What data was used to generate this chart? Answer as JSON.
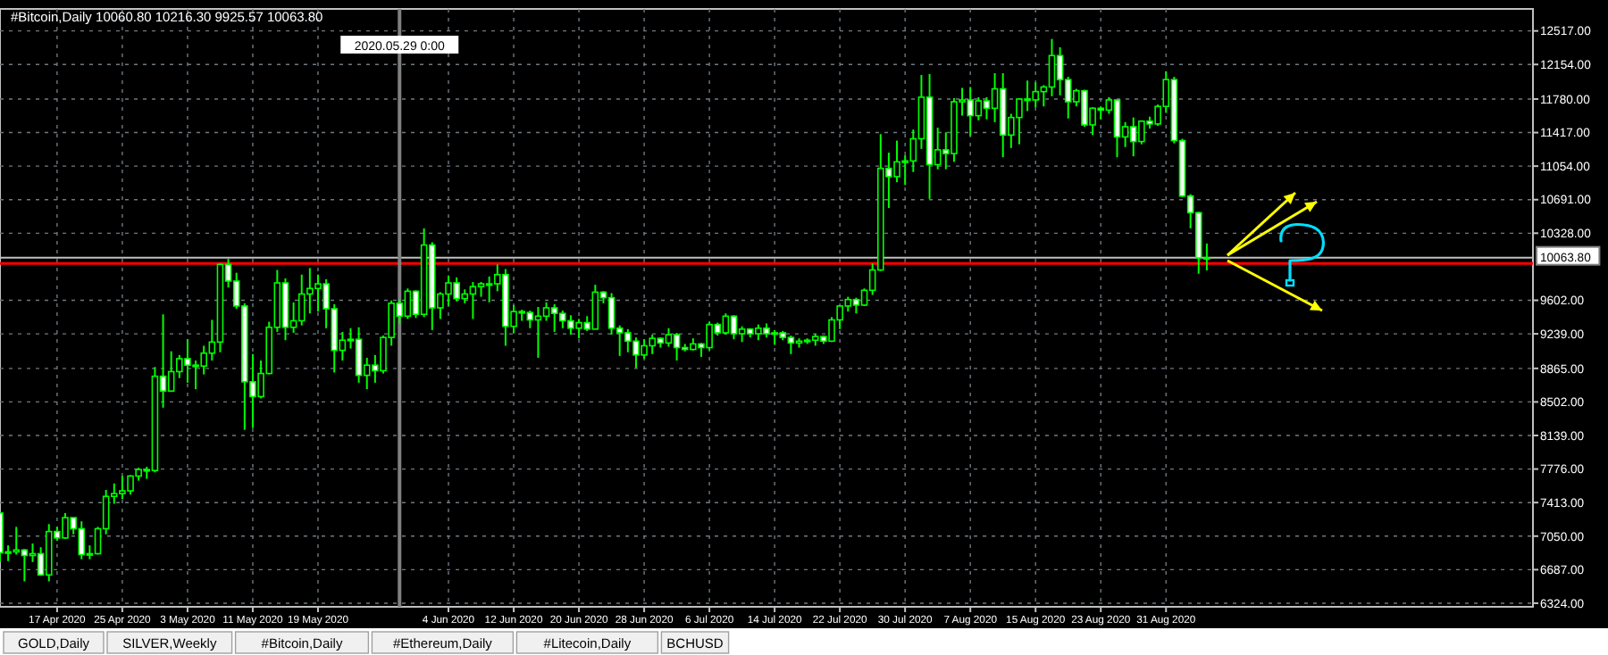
{
  "chart_data": {
    "type": "candlestick",
    "title": "#Bitcoin,Daily 10060.80 10216.30 9925.57 10063.80",
    "color": "#00ff00",
    "grid": true,
    "xlim": [
      "2020-04-10",
      "2020-10-15"
    ],
    "xticks": [
      {
        "value": "2020-04-17",
        "label": "17 Apr 2020"
      },
      {
        "value": "2020-04-25",
        "label": "25 Apr 2020"
      },
      {
        "value": "2020-05-03",
        "label": "3 May 2020"
      },
      {
        "value": "2020-05-11",
        "label": "11 May 2020"
      },
      {
        "value": "2020-05-19",
        "label": "19 May 2020"
      },
      {
        "value": "2020-06-04",
        "label": "4 Jun 2020"
      },
      {
        "value": "2020-06-12",
        "label": "12 Jun 2020"
      },
      {
        "value": "2020-06-20",
        "label": "20 Jun 2020"
      },
      {
        "value": "2020-06-28",
        "label": "28 Jun 2020"
      },
      {
        "value": "2020-07-06",
        "label": "6 Jul 2020"
      },
      {
        "value": "2020-07-14",
        "label": "14 Jul 2020"
      },
      {
        "value": "2020-07-22",
        "label": "22 Jul 2020"
      },
      {
        "value": "2020-07-30",
        "label": "30 Jul 2020"
      },
      {
        "value": "2020-08-07",
        "label": "7 Aug 2020"
      },
      {
        "value": "2020-08-15",
        "label": "15 Aug 2020"
      },
      {
        "value": "2020-08-23",
        "label": "23 Aug 2020"
      },
      {
        "value": "2020-08-31",
        "label": "31 Aug 2020"
      }
    ],
    "ylim": [
      6285,
      12755
    ],
    "yticks": [
      {
        "value": 6324,
        "label": "6324.00"
      },
      {
        "value": 6687,
        "label": "6687.00"
      },
      {
        "value": 7050,
        "label": "7050.00"
      },
      {
        "value": 7413,
        "label": "7413.00"
      },
      {
        "value": 7776,
        "label": "7776.00"
      },
      {
        "value": 8139,
        "label": "8139.00"
      },
      {
        "value": 8502,
        "label": "8502.00"
      },
      {
        "value": 8865,
        "label": "8865.00"
      },
      {
        "value": 9239,
        "label": "9239.00"
      },
      {
        "value": 9602,
        "label": "9602.00"
      },
      {
        "value": 10328,
        "label": "10328.00"
      },
      {
        "value": 10691,
        "label": "10691.00"
      },
      {
        "value": 11054,
        "label": "11054.00"
      },
      {
        "value": 11417,
        "label": "11417.00"
      },
      {
        "value": 11780,
        "label": "11780.00"
      },
      {
        "value": 12154,
        "label": "12154.00"
      },
      {
        "value": 12517,
        "label": "12517.00"
      }
    ],
    "ref_lines": [
      {
        "axis": "y",
        "value": 10063.8,
        "label": "10063.80",
        "color": "#c0c0c0"
      },
      {
        "axis": "y",
        "value": 10000,
        "color": "#ff0000"
      },
      {
        "axis": "x",
        "value": "2020-05-29",
        "label": "2020.05.29 0:00",
        "color": "#808080"
      }
    ],
    "annotations": [
      "GOLD,Daily",
      "SILVER,Weekly",
      "#Bitcoin,Daily",
      "#Ethereum,Daily",
      "#Litecoin,Daily",
      "BCHUSD"
    ],
    "x": [
      "2020-04-10",
      "2020-04-11",
      "2020-04-12",
      "2020-04-13",
      "2020-04-14",
      "2020-04-15",
      "2020-04-16",
      "2020-04-17",
      "2020-04-18",
      "2020-04-19",
      "2020-04-20",
      "2020-04-21",
      "2020-04-22",
      "2020-04-23",
      "2020-04-24",
      "2020-04-25",
      "2020-04-26",
      "2020-04-27",
      "2020-04-28",
      "2020-04-29",
      "2020-04-30",
      "2020-05-01",
      "2020-05-02",
      "2020-05-03",
      "2020-05-04",
      "2020-05-05",
      "2020-05-06",
      "2020-05-07",
      "2020-05-08",
      "2020-05-09",
      "2020-05-10",
      "2020-05-11",
      "2020-05-12",
      "2020-05-13",
      "2020-05-14",
      "2020-05-15",
      "2020-05-16",
      "2020-05-17",
      "2020-05-18",
      "2020-05-19",
      "2020-05-20",
      "2020-05-21",
      "2020-05-22",
      "2020-05-23",
      "2020-05-24",
      "2020-05-25",
      "2020-05-26",
      "2020-05-27",
      "2020-05-28",
      "2020-05-29",
      "2020-05-30",
      "2020-05-31",
      "2020-06-01",
      "2020-06-02",
      "2020-06-03",
      "2020-06-04",
      "2020-06-05",
      "2020-06-06",
      "2020-06-07",
      "2020-06-08",
      "2020-06-09",
      "2020-06-10",
      "2020-06-11",
      "2020-06-12",
      "2020-06-13",
      "2020-06-14",
      "2020-06-15",
      "2020-06-16",
      "2020-06-17",
      "2020-06-18",
      "2020-06-19",
      "2020-06-20",
      "2020-06-21",
      "2020-06-22",
      "2020-06-23",
      "2020-06-24",
      "2020-06-25",
      "2020-06-26",
      "2020-06-27",
      "2020-06-28",
      "2020-06-29",
      "2020-06-30",
      "2020-07-01",
      "2020-07-02",
      "2020-07-03",
      "2020-07-04",
      "2020-07-05",
      "2020-07-06",
      "2020-07-07",
      "2020-07-08",
      "2020-07-09",
      "2020-07-10",
      "2020-07-11",
      "2020-07-12",
      "2020-07-13",
      "2020-07-14",
      "2020-07-15",
      "2020-07-16",
      "2020-07-17",
      "2020-07-18",
      "2020-07-19",
      "2020-07-20",
      "2020-07-21",
      "2020-07-22",
      "2020-07-23",
      "2020-07-24",
      "2020-07-25",
      "2020-07-26",
      "2020-07-27",
      "2020-07-28",
      "2020-07-29",
      "2020-07-30",
      "2020-07-31",
      "2020-08-01",
      "2020-08-02",
      "2020-08-03",
      "2020-08-04",
      "2020-08-05",
      "2020-08-06",
      "2020-08-07",
      "2020-08-08",
      "2020-08-09",
      "2020-08-10",
      "2020-08-11",
      "2020-08-12",
      "2020-08-13",
      "2020-08-14",
      "2020-08-15",
      "2020-08-16",
      "2020-08-17",
      "2020-08-18",
      "2020-08-19",
      "2020-08-20",
      "2020-08-21",
      "2020-08-22",
      "2020-08-23",
      "2020-08-24",
      "2020-08-25",
      "2020-08-26",
      "2020-08-27",
      "2020-08-28",
      "2020-08-29",
      "2020-08-30",
      "2020-08-31",
      "2020-09-01",
      "2020-09-02",
      "2020-09-03",
      "2020-09-04",
      "2020-09-05"
    ],
    "ohlc": [
      [
        7300,
        7310,
        6770,
        6870
      ],
      [
        6870,
        6950,
        6780,
        6880
      ],
      [
        6880,
        7150,
        6850,
        6900
      ],
      [
        6900,
        6910,
        6560,
        6840
      ],
      [
        6840,
        6970,
        6770,
        6860
      ],
      [
        6860,
        6930,
        6620,
        6630
      ],
      [
        6630,
        7180,
        6560,
        7100
      ],
      [
        7100,
        7150,
        7000,
        7030
      ],
      [
        7030,
        7300,
        7020,
        7250
      ],
      [
        7250,
        7250,
        7070,
        7130
      ],
      [
        7130,
        7210,
        6800,
        6850
      ],
      [
        6850,
        6950,
        6800,
        6860
      ],
      [
        6860,
        7150,
        6850,
        7130
      ],
      [
        7130,
        7550,
        7070,
        7480
      ],
      [
        7480,
        7620,
        7400,
        7510
      ],
      [
        7510,
        7700,
        7450,
        7540
      ],
      [
        7540,
        7710,
        7500,
        7700
      ],
      [
        7700,
        7790,
        7650,
        7770
      ],
      [
        7770,
        7800,
        7670,
        7760
      ],
      [
        7760,
        8880,
        7740,
        8780
      ],
      [
        8780,
        9450,
        8440,
        8620
      ],
      [
        8620,
        9050,
        8610,
        8830
      ],
      [
        8830,
        9010,
        8760,
        8970
      ],
      [
        8970,
        9180,
        8710,
        8900
      ],
      [
        8900,
        8950,
        8640,
        8890
      ],
      [
        8890,
        9110,
        8800,
        9030
      ],
      [
        9030,
        9390,
        8950,
        9150
      ],
      [
        9150,
        10000,
        9040,
        9990
      ],
      [
        9990,
        10050,
        9740,
        9810
      ],
      [
        9810,
        9900,
        9510,
        9540
      ],
      [
        9540,
        9570,
        8200,
        8720
      ],
      [
        8720,
        9020,
        8220,
        8560
      ],
      [
        8560,
        8950,
        8540,
        8810
      ],
      [
        8810,
        9370,
        8800,
        9310
      ],
      [
        9310,
        9930,
        9260,
        9790
      ],
      [
        9790,
        9840,
        9170,
        9310
      ],
      [
        9310,
        9580,
        9250,
        9380
      ],
      [
        9380,
        9880,
        9330,
        9670
      ],
      [
        9670,
        9950,
        9460,
        9730
      ],
      [
        9730,
        9880,
        9480,
        9780
      ],
      [
        9780,
        9830,
        9300,
        9510
      ],
      [
        9510,
        9560,
        8820,
        9060
      ],
      [
        9060,
        9260,
        8950,
        9170
      ],
      [
        9170,
        9300,
        9080,
        9180
      ],
      [
        9180,
        9310,
        8710,
        8790
      ],
      [
        8790,
        8980,
        8640,
        8900
      ],
      [
        8900,
        9010,
        8710,
        8840
      ],
      [
        8840,
        9220,
        8810,
        9200
      ],
      [
        9200,
        9600,
        9110,
        9570
      ],
      [
        9570,
        9610,
        9350,
        9430
      ],
      [
        9430,
        9730,
        9400,
        9700
      ],
      [
        9700,
        9710,
        9410,
        9450
      ],
      [
        9450,
        10380,
        9420,
        10200
      ],
      [
        10200,
        10230,
        9280,
        9520
      ],
      [
        9520,
        9690,
        9400,
        9670
      ],
      [
        9670,
        9870,
        9540,
        9790
      ],
      [
        9790,
        9850,
        9590,
        9620
      ],
      [
        9620,
        9720,
        9570,
        9670
      ],
      [
        9670,
        9800,
        9400,
        9750
      ],
      [
        9750,
        9800,
        9640,
        9780
      ],
      [
        9780,
        9860,
        9580,
        9780
      ],
      [
        9780,
        9990,
        9700,
        9880
      ],
      [
        9880,
        9940,
        9110,
        9320
      ],
      [
        9320,
        9550,
        9250,
        9480
      ],
      [
        9480,
        9500,
        9380,
        9470
      ],
      [
        9470,
        9490,
        9300,
        9390
      ],
      [
        9390,
        9530,
        8980,
        9430
      ],
      [
        9430,
        9580,
        9380,
        9520
      ],
      [
        9520,
        9560,
        9260,
        9460
      ],
      [
        9460,
        9490,
        9300,
        9380
      ],
      [
        9380,
        9440,
        9230,
        9300
      ],
      [
        9300,
        9400,
        9190,
        9360
      ],
      [
        9360,
        9430,
        9270,
        9290
      ],
      [
        9290,
        9770,
        9290,
        9690
      ],
      [
        9690,
        9700,
        9570,
        9630
      ],
      [
        9630,
        9680,
        9230,
        9300
      ],
      [
        9300,
        9330,
        9000,
        9250
      ],
      [
        9250,
        9290,
        9040,
        9160
      ],
      [
        9160,
        9200,
        8870,
        9010
      ],
      [
        9010,
        9180,
        8970,
        9110
      ],
      [
        9110,
        9230,
        9020,
        9190
      ],
      [
        9190,
        9200,
        9090,
        9140
      ],
      [
        9140,
        9300,
        9100,
        9230
      ],
      [
        9230,
        9250,
        8950,
        9090
      ],
      [
        9090,
        9130,
        9050,
        9070
      ],
      [
        9070,
        9190,
        9060,
        9130
      ],
      [
        9130,
        9140,
        8990,
        9090
      ],
      [
        9090,
        9370,
        9060,
        9340
      ],
      [
        9340,
        9360,
        9220,
        9250
      ],
      [
        9250,
        9460,
        9230,
        9430
      ],
      [
        9430,
        9440,
        9180,
        9240
      ],
      [
        9240,
        9320,
        9150,
        9290
      ],
      [
        9290,
        9300,
        9200,
        9240
      ],
      [
        9240,
        9340,
        9170,
        9300
      ],
      [
        9300,
        9350,
        9200,
        9240
      ],
      [
        9240,
        9280,
        9120,
        9250
      ],
      [
        9250,
        9270,
        9170,
        9200
      ],
      [
        9200,
        9220,
        9020,
        9140
      ],
      [
        9140,
        9190,
        9090,
        9160
      ],
      [
        9160,
        9190,
        9130,
        9170
      ],
      [
        9170,
        9240,
        9110,
        9210
      ],
      [
        9210,
        9220,
        9130,
        9160
      ],
      [
        9160,
        9420,
        9150,
        9390
      ],
      [
        9390,
        9550,
        9290,
        9540
      ],
      [
        9540,
        9640,
        9480,
        9610
      ],
      [
        9610,
        9630,
        9460,
        9550
      ],
      [
        9550,
        9730,
        9540,
        9710
      ],
      [
        9710,
        10000,
        9660,
        9930
      ],
      [
        9930,
        11400,
        9920,
        11030
      ],
      [
        11030,
        11200,
        10600,
        10940
      ],
      [
        10940,
        11330,
        10880,
        11100
      ],
      [
        11100,
        11170,
        10850,
        11110
      ],
      [
        11110,
        11450,
        10990,
        11350
      ],
      [
        11350,
        12040,
        11240,
        11800
      ],
      [
        11800,
        12050,
        10700,
        11070
      ],
      [
        11070,
        11470,
        11020,
        11230
      ],
      [
        11230,
        11420,
        11020,
        11190
      ],
      [
        11190,
        11790,
        11100,
        11750
      ],
      [
        11750,
        11900,
        11600,
        11770
      ],
      [
        11770,
        11910,
        11380,
        11600
      ],
      [
        11600,
        11800,
        11550,
        11760
      ],
      [
        11760,
        11800,
        11560,
        11680
      ],
      [
        11680,
        12060,
        11530,
        11890
      ],
      [
        11890,
        12060,
        11150,
        11390
      ],
      [
        11390,
        11620,
        11250,
        11580
      ],
      [
        11580,
        11790,
        11290,
        11780
      ],
      [
        11780,
        11980,
        11650,
        11770
      ],
      [
        11770,
        11960,
        11690,
        11860
      ],
      [
        11860,
        11930,
        11700,
        11910
      ],
      [
        11910,
        12430,
        11810,
        12250
      ],
      [
        12250,
        12340,
        11820,
        11990
      ],
      [
        11990,
        12020,
        11570,
        11750
      ],
      [
        11750,
        11890,
        11700,
        11870
      ],
      [
        11870,
        11880,
        11480,
        11500
      ],
      [
        11500,
        11690,
        11390,
        11680
      ],
      [
        11680,
        11700,
        11560,
        11660
      ],
      [
        11660,
        11800,
        11620,
        11770
      ],
      [
        11770,
        11770,
        11150,
        11370
      ],
      [
        11370,
        11530,
        11260,
        11480
      ],
      [
        11480,
        11580,
        11160,
        11320
      ],
      [
        11320,
        11550,
        11290,
        11540
      ],
      [
        11540,
        11590,
        11460,
        11510
      ],
      [
        11510,
        11720,
        11490,
        11700
      ],
      [
        11700,
        12080,
        11630,
        11990
      ],
      [
        11990,
        12020,
        11300,
        11330
      ],
      [
        11330,
        11350,
        10720,
        10730
      ],
      [
        10730,
        10750,
        10380,
        10550
      ],
      [
        10550,
        10560,
        9890,
        10060
      ],
      [
        10060.8,
        10216.3,
        9925.57,
        10063.8
      ]
    ]
  }
}
